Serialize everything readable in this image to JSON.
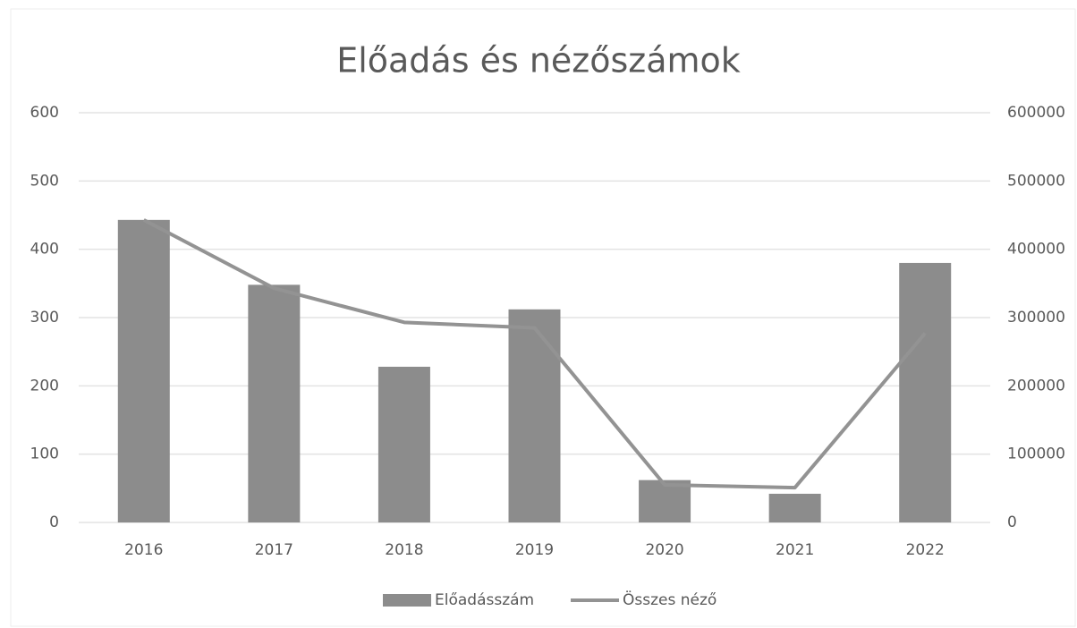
{
  "chart_data": {
    "type": "bar-line",
    "title": "Előadás és nézőszámok",
    "categories": [
      "2016",
      "2017",
      "2018",
      "2019",
      "2020",
      "2021",
      "2022"
    ],
    "series": [
      {
        "name": "Előadásszám",
        "type": "bar",
        "color": "#8c8c8c",
        "values": [
          443,
          348,
          228,
          312,
          62,
          42,
          380
        ]
      },
      {
        "name": "Összes néző",
        "type": "line",
        "axis": "y2",
        "color": "#939393",
        "values": [
          443000,
          343000,
          293000,
          285000,
          55000,
          51000,
          277000
        ]
      }
    ],
    "ylim": [
      0,
      600
    ],
    "yticks": [
      0,
      100,
      200,
      300,
      400,
      500,
      600
    ],
    "y2lim": [
      0,
      600000
    ],
    "y2ticks": [
      0,
      100000,
      200000,
      300000,
      400000,
      500000,
      600000
    ],
    "grid": true,
    "legend": "bottom"
  }
}
